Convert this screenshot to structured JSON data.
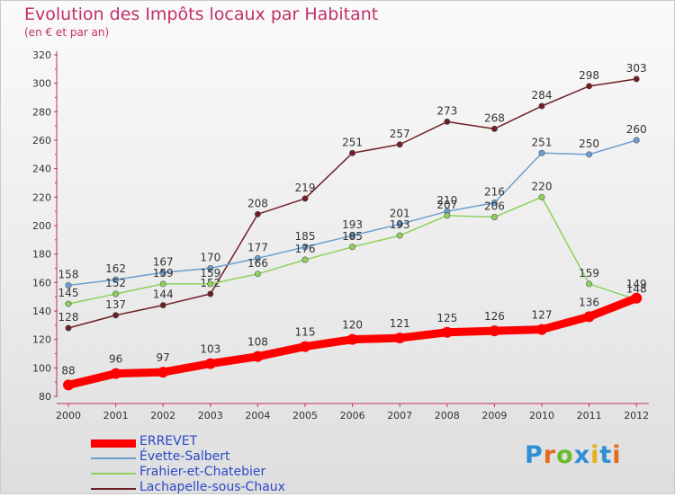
{
  "title": "Evolution des Impôts locaux par Habitant",
  "subtitle": "(en € et par an)",
  "logo": {
    "text": "Proxiti",
    "letters": [
      {
        "ch": "P",
        "color": "#2f8fd6"
      },
      {
        "ch": "r",
        "color": "#e36c1c"
      },
      {
        "ch": "o",
        "color": "#6cba2e"
      },
      {
        "ch": "x",
        "color": "#2f8fd6"
      },
      {
        "ch": "i",
        "color": "#e3b21c"
      },
      {
        "ch": "t",
        "color": "#2f8fd6"
      },
      {
        "ch": "i",
        "color": "#e36c1c"
      }
    ]
  },
  "chart_data": {
    "type": "line",
    "title": "Evolution des Impôts locaux par Habitant",
    "subtitle": "(en € et par an)",
    "x": [
      "2000",
      "2001",
      "2002",
      "2003",
      "2004",
      "2005",
      "2006",
      "2007",
      "2008",
      "2009",
      "2010",
      "2011",
      "2012"
    ],
    "ylim": [
      80,
      320
    ],
    "yticks": [
      80,
      100,
      120,
      140,
      160,
      180,
      200,
      220,
      240,
      260,
      280,
      300,
      320
    ],
    "grid": false,
    "legend": "bottom-left",
    "series": [
      {
        "name": "ERREVET",
        "color": "#ff0000",
        "values": [
          88,
          96,
          97,
          103,
          108,
          115,
          120,
          121,
          125,
          126,
          127,
          136,
          149
        ]
      },
      {
        "name": "Évette-Salbert",
        "color": "#6a9fd0",
        "values": [
          158,
          162,
          167,
          170,
          177,
          185,
          193,
          201,
          210,
          216,
          251,
          250,
          260
        ]
      },
      {
        "name": "Frahier-et-Chatebier",
        "color": "#8ed15a",
        "values": [
          145,
          152,
          159,
          159,
          166,
          176,
          185,
          193,
          207,
          206,
          220,
          159,
          148
        ]
      },
      {
        "name": "Lachapelle-sous-Chaux",
        "color": "#6e1f26",
        "values": [
          128,
          137,
          144,
          152,
          208,
          219,
          251,
          257,
          273,
          268,
          284,
          298,
          303
        ]
      }
    ]
  }
}
